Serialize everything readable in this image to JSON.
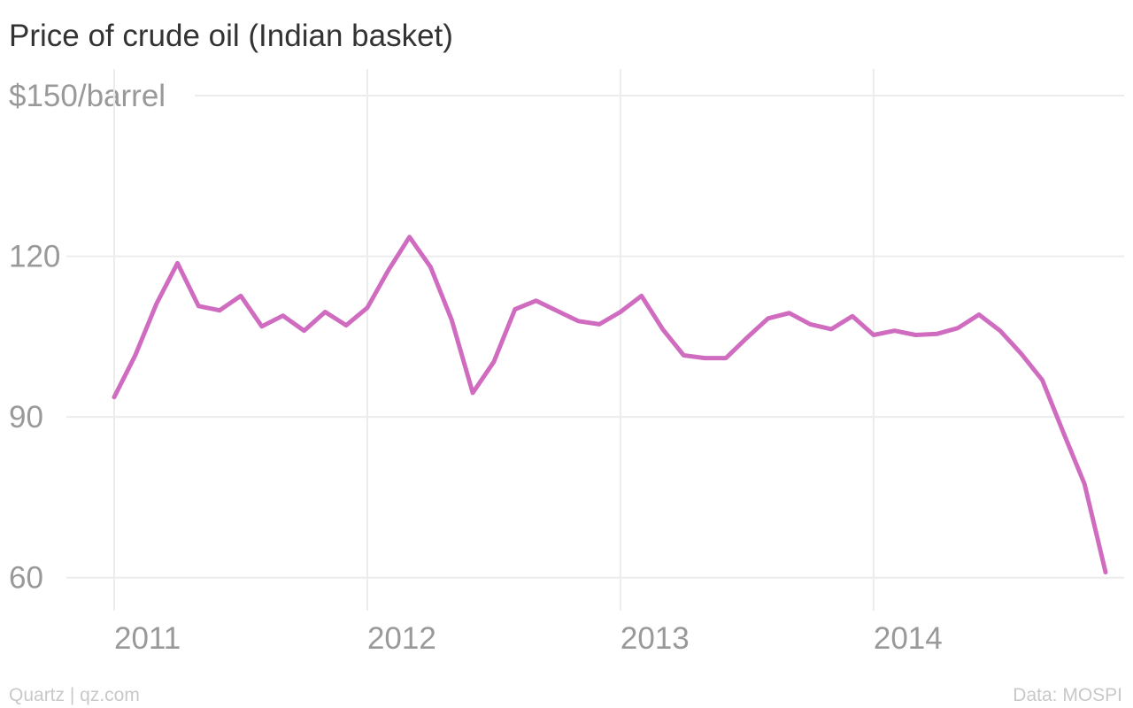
{
  "chart_data": {
    "type": "line",
    "title": "Price of crude oil (Indian basket)",
    "source": "Data: MOSPI",
    "credit": "Quartz | qz.com",
    "color": "#d06cc0",
    "x": [
      "2011-01",
      "2011-02",
      "2011-03",
      "2011-04",
      "2011-05",
      "2011-06",
      "2011-07",
      "2011-08",
      "2011-09",
      "2011-10",
      "2011-11",
      "2011-12",
      "2012-01",
      "2012-02",
      "2012-03",
      "2012-04",
      "2012-05",
      "2012-06",
      "2012-07",
      "2012-08",
      "2012-09",
      "2012-10",
      "2012-11",
      "2012-12",
      "2013-01",
      "2013-02",
      "2013-03",
      "2013-04",
      "2013-05",
      "2013-06",
      "2013-07",
      "2013-08",
      "2013-09",
      "2013-10",
      "2013-11",
      "2013-12",
      "2014-01",
      "2014-02",
      "2014-03",
      "2014-04",
      "2014-05",
      "2014-06",
      "2014-07",
      "2014-08",
      "2014-09",
      "2014-10",
      "2014-11",
      "2014-12"
    ],
    "values": [
      93.7,
      101.5,
      111.1,
      118.7,
      110.7,
      109.9,
      112.6,
      106.9,
      108.9,
      106.1,
      109.6,
      107.1,
      110.4,
      117.4,
      123.6,
      118.0,
      108.1,
      94.5,
      100.3,
      110.1,
      111.7,
      109.8,
      107.9,
      107.3,
      109.6,
      112.6,
      106.4,
      101.5,
      101.0,
      101.0,
      104.8,
      108.4,
      109.4,
      107.3,
      106.4,
      108.8,
      105.3,
      106.1,
      105.3,
      105.5,
      106.6,
      109.1,
      106.1,
      101.8,
      96.9,
      87.1,
      77.5,
      61.0
    ],
    "xlim": [
      "2011-01",
      "2014-12"
    ],
    "xticks": [
      "2011",
      "2012",
      "2013",
      "2014"
    ],
    "ylim": [
      54,
      150
    ],
    "yticks": [
      60,
      90,
      120,
      {
        "value": 150,
        "label": "$150/barrel"
      }
    ],
    "grid": true
  }
}
